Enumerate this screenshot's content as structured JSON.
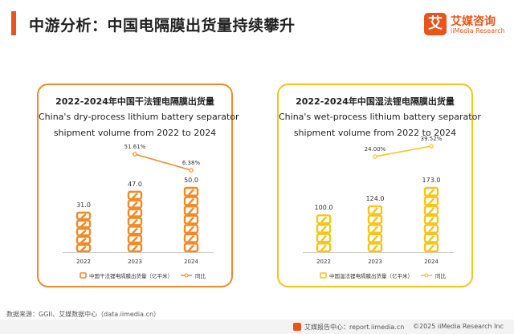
{
  "page": {
    "title": "中游分析：中国电隔膜出货量持续攀升",
    "source": "数据来源：GGII、艾媒数据中心（data.iimedia.cn）"
  },
  "logo": {
    "mark": "艾",
    "cn": "艾媒咨询",
    "en": "iiMedia Research"
  },
  "footer": {
    "left": "艾媒报告中心：report.iimedia.cn",
    "right": "©2025  iiMedia Research  Inc"
  },
  "chart_data": [
    {
      "type": "bar",
      "title": "2022-2024年中国干法锂电隔膜出货量",
      "subtitle": "China's dry-process lithium battery separator shipment volume from 2022 to 2024",
      "title_en_line1": "China's dry-process lithium battery separator",
      "title_en_line2": "shipment volume from 2022 to 2024",
      "categories": [
        "2022",
        "2023",
        "2024"
      ],
      "series": [
        {
          "name": "中国干法锂电隔膜出货量（亿平米）",
          "values": [
            31.0,
            47.0,
            50.0
          ],
          "labels": [
            "31.0",
            "47.0",
            "50.0"
          ],
          "color": "#f08a28",
          "axis": "left"
        },
        {
          "name": "同比",
          "values": [
            null,
            51.61,
            6.38
          ],
          "labels": [
            "",
            "51.61%",
            "6.38%"
          ],
          "color": "#f08a28",
          "type": "line",
          "axis": "right"
        }
      ],
      "legend_position": "bottom"
    },
    {
      "type": "bar",
      "title": "2022-2024年中国湿法锂电隔膜出货量",
      "subtitle": "China's wet-process lithium battery separator shipment volume from 2022 to 2024",
      "title_en_line1": "China's wet-process lithium battery separator",
      "title_en_line2": "shipment volume from 2022 to 2024",
      "categories": [
        "2022",
        "2023",
        "2024"
      ],
      "series": [
        {
          "name": "中国湿法锂电隔膜出货量（亿平米）",
          "values": [
            100.0,
            124.0,
            173.0
          ],
          "labels": [
            "100.0",
            "124.0",
            "173.0"
          ],
          "color": "#f5c518",
          "axis": "left"
        },
        {
          "name": "同比",
          "values": [
            null,
            24.0,
            39.52
          ],
          "labels": [
            "",
            "24.00%",
            "39.52%"
          ],
          "color": "#f5c518",
          "type": "line",
          "axis": "right"
        }
      ],
      "legend_position": "bottom"
    }
  ]
}
